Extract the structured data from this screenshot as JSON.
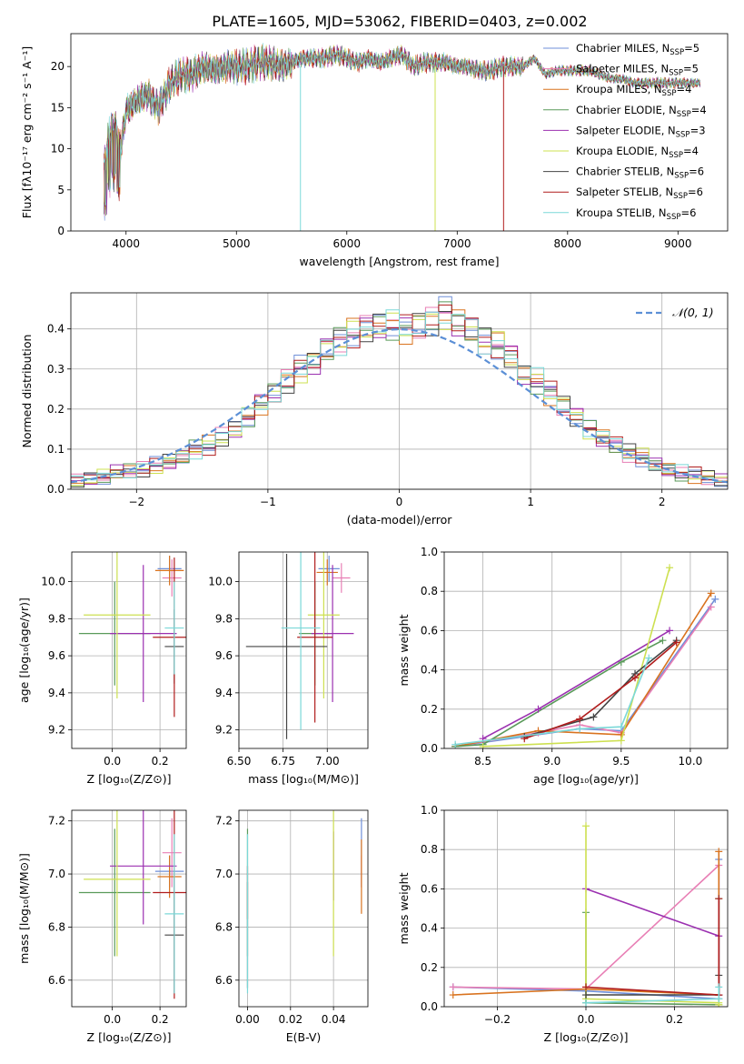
{
  "figure_title": "PLATE=1605, MJD=53062, FIBERID=0403, z=0.002",
  "series": [
    {
      "name": "Chabrier MILES, N",
      "sub": "SSP",
      "tail": "=5",
      "color": "#6f8fd8"
    },
    {
      "name": "Salpeter MILES, N",
      "sub": "SSP",
      "tail": "=5",
      "color": "#e87fb5"
    },
    {
      "name": "Kroupa MILES, N",
      "sub": "SSP",
      "tail": "=4",
      "color": "#d9731f"
    },
    {
      "name": "Chabrier ELODIE, N",
      "sub": "SSP",
      "tail": "=4",
      "color": "#5a9a5a"
    },
    {
      "name": "Salpeter ELODIE, N",
      "sub": "SSP",
      "tail": "=3",
      "color": "#9b30b0"
    },
    {
      "name": "Kroupa ELODIE, N",
      "sub": "SSP",
      "tail": "=4",
      "color": "#cde050"
    },
    {
      "name": "Chabrier STELIB, N",
      "sub": "SSP",
      "tail": "=6",
      "color": "#444444"
    },
    {
      "name": "Salpeter STELIB, N",
      "sub": "SSP",
      "tail": "=6",
      "color": "#b01d1d"
    },
    {
      "name": "Kroupa STELIB, N",
      "sub": "SSP",
      "tail": "=6",
      "color": "#7bd8d8"
    }
  ],
  "chart_data": [
    {
      "type": "line",
      "id": "spectrum",
      "xlabel": "wavelength [Angstrom, rest frame]",
      "ylabel": "Flux [fλ10⁻¹⁷ erg cm⁻² s⁻¹ A⁻¹]",
      "xlim": [
        3500,
        9450
      ],
      "ylim": [
        0,
        24
      ],
      "xticks": [
        4000,
        5000,
        6000,
        7000,
        8000,
        9000
      ],
      "yticks": [
        0,
        5,
        10,
        15,
        20
      ],
      "x": [
        3800,
        3850,
        3900,
        3950,
        4000,
        4100,
        4200,
        4300,
        4400,
        4500,
        4600,
        4700,
        4800,
        4900,
        5000,
        5100,
        5200,
        5300,
        5400,
        5500,
        5600,
        5700,
        5800,
        5900,
        6000,
        6100,
        6200,
        6300,
        6400,
        6500,
        6600,
        6700,
        6800,
        6900,
        7000,
        7100,
        7200,
        7300,
        7400,
        7500,
        7600,
        7700,
        7800,
        7900,
        8000,
        8100,
        8200,
        8300,
        8400,
        8500,
        8600,
        8700,
        8800,
        8900,
        9000,
        9100,
        9200
      ],
      "y": [
        8,
        12,
        13,
        10,
        14.5,
        16,
        16.5,
        15,
        18,
        19,
        19,
        20,
        19.5,
        20,
        20,
        20,
        20.5,
        20.5,
        20,
        20.5,
        21,
        21,
        21,
        21.5,
        21,
        20.5,
        21,
        20.5,
        21,
        21.5,
        20,
        20.5,
        20.5,
        20.5,
        20,
        20,
        19.5,
        19.5,
        20,
        20,
        20,
        21,
        19,
        19.5,
        19.5,
        19.5,
        19.5,
        19,
        18.5,
        18.5,
        18,
        18,
        18,
        18,
        18,
        18,
        18
      ],
      "legend": "upper right"
    },
    {
      "type": "histogram",
      "id": "residuals",
      "xlabel": "(data-model)/error",
      "ylabel": "Normed distribution",
      "xlim": [
        -2.5,
        2.5
      ],
      "ylim": [
        0,
        0.49
      ],
      "xticks": [
        -2,
        -1,
        0,
        1,
        2
      ],
      "xticklabels": [
        "−2",
        "−1",
        "0",
        "1",
        "2"
      ],
      "yticks": [
        0,
        0.1,
        0.2,
        0.3,
        0.4
      ],
      "yticklabels": [
        "0.0",
        "0.1",
        "0.2",
        "0.3",
        "0.4"
      ],
      "bin_edges_start": -2.5,
      "bin_width": 0.1,
      "base_values": [
        0.02,
        0.025,
        0.03,
        0.04,
        0.045,
        0.05,
        0.06,
        0.07,
        0.08,
        0.1,
        0.11,
        0.13,
        0.15,
        0.18,
        0.21,
        0.24,
        0.27,
        0.3,
        0.32,
        0.35,
        0.37,
        0.39,
        0.4,
        0.41,
        0.41,
        0.4,
        0.41,
        0.42,
        0.44,
        0.42,
        0.4,
        0.37,
        0.36,
        0.33,
        0.29,
        0.27,
        0.24,
        0.21,
        0.18,
        0.15,
        0.13,
        0.11,
        0.09,
        0.08,
        0.06,
        0.05,
        0.04,
        0.035,
        0.03,
        0.02
      ],
      "gaussian_label": "𝒩(0, 1)",
      "gaussian_color": "#5b8fd6",
      "legend": "upper right"
    },
    {
      "type": "scatter",
      "id": "age-vs-Z",
      "xlabel": "Z [log₁₀(Z/Z⊙)]",
      "ylabel": "age  [log₁₀(age/yr)]",
      "xlim": [
        -0.17,
        0.31
      ],
      "ylim": [
        9.1,
        10.16
      ],
      "xticks": [
        0.0,
        0.2
      ],
      "yticks": [
        9.2,
        9.4,
        9.6,
        9.8,
        10.0
      ],
      "points": [
        {
          "x": 0.24,
          "y": 10.07,
          "xerr": 0.05,
          "yerr": 0.07
        },
        {
          "x": 0.25,
          "y": 10.02,
          "xerr": 0.04,
          "yerr": 0.1
        },
        {
          "x": 0.24,
          "y": 10.06,
          "xerr": 0.06,
          "yerr": 0.08
        },
        {
          "x": 0.01,
          "y": 9.72,
          "xerr": 0.15,
          "yerr": 0.28
        },
        {
          "x": 0.13,
          "y": 9.72,
          "xerr": 0.14,
          "yerr": 0.37
        },
        {
          "x": 0.02,
          "y": 9.82,
          "xerr": 0.14,
          "yerr": 0.45
        },
        {
          "x": 0.26,
          "y": 9.65,
          "xerr": 0.04,
          "yerr": 0.2
        },
        {
          "x": 0.26,
          "y": 9.7,
          "xerr": 0.09,
          "yerr": 0.43
        },
        {
          "x": 0.26,
          "y": 9.75,
          "xerr": 0.04,
          "yerr": 0.25
        }
      ]
    },
    {
      "type": "scatter",
      "id": "age-vs-mass",
      "xlabel": "mass [log₁₀(M/M⊙)]",
      "ylabel": "",
      "xlim": [
        6.5,
        7.23
      ],
      "ylim": [
        9.1,
        10.16
      ],
      "xticks": [
        6.5,
        6.75,
        7.0
      ],
      "xticklabels": [
        "6.50",
        "6.75",
        "7.00"
      ],
      "yticks": [
        9.2,
        9.4,
        9.6,
        9.8,
        10.0
      ],
      "points": [
        {
          "x": 7.01,
          "y": 10.07,
          "xerr": 0.06,
          "yerr": 0.07
        },
        {
          "x": 7.08,
          "y": 10.02,
          "xerr": 0.05,
          "yerr": 0.08
        },
        {
          "x": 7.0,
          "y": 10.05,
          "xerr": 0.06,
          "yerr": 0.07
        },
        {
          "x": 6.93,
          "y": 9.72,
          "xerr": 0.09,
          "yerr": 0.28
        },
        {
          "x": 7.03,
          "y": 9.72,
          "xerr": 0.12,
          "yerr": 0.37
        },
        {
          "x": 6.98,
          "y": 9.82,
          "xerr": 0.09,
          "yerr": 0.45
        },
        {
          "x": 6.77,
          "y": 9.65,
          "xerr": 0.23,
          "yerr": 0.5
        },
        {
          "x": 6.93,
          "y": 9.7,
          "xerr": 0.1,
          "yerr": 0.46
        },
        {
          "x": 6.85,
          "y": 9.75,
          "xerr": 0.11,
          "yerr": 0.55
        }
      ]
    },
    {
      "type": "line",
      "id": "massweight-vs-age",
      "xlabel": "age  [log₁₀(age/yr)]",
      "ylabel": "mass weight",
      "xlim": [
        8.22,
        10.27
      ],
      "ylim": [
        0,
        1
      ],
      "xticks": [
        8.5,
        9.0,
        9.5,
        10.0
      ],
      "yticks": [
        0,
        0.2,
        0.4,
        0.6,
        0.8,
        1.0
      ],
      "lines": [
        {
          "x": [
            8.3,
            8.8,
            9.2,
            9.5,
            10.18
          ],
          "y": [
            0.01,
            0.06,
            0.1,
            0.09,
            0.76
          ]
        },
        {
          "x": [
            8.3,
            8.9,
            9.2,
            9.5,
            10.15
          ],
          "y": [
            0.01,
            0.08,
            0.12,
            0.08,
            0.72
          ]
        },
        {
          "x": [
            8.3,
            8.9,
            9.5,
            10.15
          ],
          "y": [
            0.01,
            0.09,
            0.07,
            0.79
          ]
        },
        {
          "x": [
            8.3,
            8.5,
            9.5,
            9.8
          ],
          "y": [
            0.01,
            0.02,
            0.44,
            0.55
          ]
        },
        {
          "x": [
            8.5,
            8.9,
            9.85
          ],
          "y": [
            0.05,
            0.2,
            0.6
          ]
        },
        {
          "x": [
            8.5,
            9.5,
            9.85
          ],
          "y": [
            0.01,
            0.04,
            0.92
          ]
        },
        {
          "x": [
            8.8,
            9.3,
            9.6,
            9.9
          ],
          "y": [
            0.06,
            0.16,
            0.38,
            0.55
          ]
        },
        {
          "x": [
            8.8,
            9.2,
            9.6,
            9.9
          ],
          "y": [
            0.05,
            0.15,
            0.36,
            0.54
          ]
        },
        {
          "x": [
            8.3,
            9.2,
            9.5,
            9.7
          ],
          "y": [
            0.02,
            0.1,
            0.11,
            0.46
          ]
        }
      ]
    },
    {
      "type": "scatter",
      "id": "mass-vs-Z",
      "xlabel": "Z [log₁₀(Z/Z⊙)]",
      "ylabel": "mass [log₁₀(M/M⊙)]",
      "xlim": [
        -0.17,
        0.31
      ],
      "ylim": [
        6.5,
        7.24
      ],
      "xticks": [
        0.0,
        0.2
      ],
      "yticks": [
        6.6,
        6.8,
        7.0,
        7.2
      ],
      "points": [
        {
          "x": 0.24,
          "y": 7.01,
          "xerr": 0.06,
          "yerr": 0.06
        },
        {
          "x": 0.25,
          "y": 7.08,
          "xerr": 0.04,
          "yerr": 0.13
        },
        {
          "x": 0.24,
          "y": 6.99,
          "xerr": 0.05,
          "yerr": 0.08
        },
        {
          "x": 0.01,
          "y": 6.93,
          "xerr": 0.15,
          "yerr": 0.24
        },
        {
          "x": 0.13,
          "y": 7.03,
          "xerr": 0.14,
          "yerr": 0.22
        },
        {
          "x": 0.02,
          "y": 6.98,
          "xerr": 0.14,
          "yerr": 0.29
        },
        {
          "x": 0.26,
          "y": 6.77,
          "xerr": 0.04,
          "yerr": 0.22
        },
        {
          "x": 0.26,
          "y": 6.93,
          "xerr": 0.09,
          "yerr": 0.4
        },
        {
          "x": 0.26,
          "y": 6.85,
          "xerr": 0.04,
          "yerr": 0.3
        }
      ]
    },
    {
      "type": "scatter",
      "id": "mass-vs-EBV",
      "xlabel": "E(B-V)",
      "ylabel": "",
      "xlim": [
        -0.004,
        0.056
      ],
      "ylim": [
        6.5,
        7.24
      ],
      "xticks": [
        0.0,
        0.02,
        0.04
      ],
      "xticklabels": [
        "0.00",
        "0.02",
        "0.04"
      ],
      "yticks": [
        6.6,
        6.8,
        7.0,
        7.2
      ],
      "points": [
        {
          "x": 0.053,
          "y": 7.08,
          "xerr": 0,
          "yerr": 0.13
        },
        {
          "x": 0.053,
          "y": 7.01,
          "xerr": 0,
          "yerr": 0.06
        },
        {
          "x": 0.053,
          "y": 6.99,
          "xerr": 0,
          "yerr": 0.14
        },
        {
          "x": 0.0,
          "y": 6.93,
          "xerr": 0,
          "yerr": 0.24
        },
        {
          "x": 0.04,
          "y": 7.03,
          "xerr": 0,
          "yerr": 0.13
        },
        {
          "x": 0.04,
          "y": 6.98,
          "xerr": 0,
          "yerr": 0.29
        },
        {
          "x": 0.0,
          "y": 6.77,
          "xerr": 0,
          "yerr": 0.2
        },
        {
          "x": 0.0,
          "y": 6.93,
          "xerr": 0,
          "yerr": 0.1
        },
        {
          "x": 0.0,
          "y": 6.85,
          "xerr": 0,
          "yerr": 0.3
        }
      ]
    },
    {
      "type": "line",
      "id": "massweight-vs-Z",
      "xlabel": "Z [log₁₀(Z/Z⊙)]",
      "ylabel": "mass weight",
      "xlim": [
        -0.32,
        0.32
      ],
      "ylim": [
        0,
        1
      ],
      "xticks": [
        -0.2,
        0.0,
        0.2
      ],
      "xticklabels": [
        "−0.2",
        "0.0",
        "0.2"
      ],
      "yticks": [
        0,
        0.2,
        0.4,
        0.6,
        0.8,
        1.0
      ],
      "lines": [
        {
          "x": [
            -0.3,
            0.0,
            0.3,
            0.3
          ],
          "y": [
            0.1,
            0.08,
            0.04,
            0.75
          ]
        },
        {
          "x": [
            -0.3,
            0.0,
            0.3,
            0.3
          ],
          "y": [
            0.1,
            0.09,
            0.72,
            0.06
          ]
        },
        {
          "x": [
            -0.3,
            0.0,
            0.3,
            0.3
          ],
          "y": [
            0.06,
            0.09,
            0.06,
            0.79
          ]
        },
        {
          "x": [
            0.0,
            0.0,
            0.3,
            0.3
          ],
          "y": [
            0.48,
            0.02,
            0.01,
            0.55
          ]
        },
        {
          "x": [
            0.0,
            0.3,
            0.3
          ],
          "y": [
            0.6,
            0.36,
            0.06
          ]
        },
        {
          "x": [
            0.0,
            0.0,
            0.3,
            0.3
          ],
          "y": [
            0.92,
            0.04,
            0.02,
            0.01
          ]
        },
        {
          "x": [
            0.0,
            0.3,
            0.3
          ],
          "y": [
            0.06,
            0.06,
            0.16
          ]
        },
        {
          "x": [
            0.0,
            0.3,
            0.3
          ],
          "y": [
            0.1,
            0.06,
            0.55
          ]
        },
        {
          "x": [
            0.0,
            0.3,
            0.3
          ],
          "y": [
            0.02,
            0.04,
            0.1
          ]
        }
      ]
    }
  ]
}
